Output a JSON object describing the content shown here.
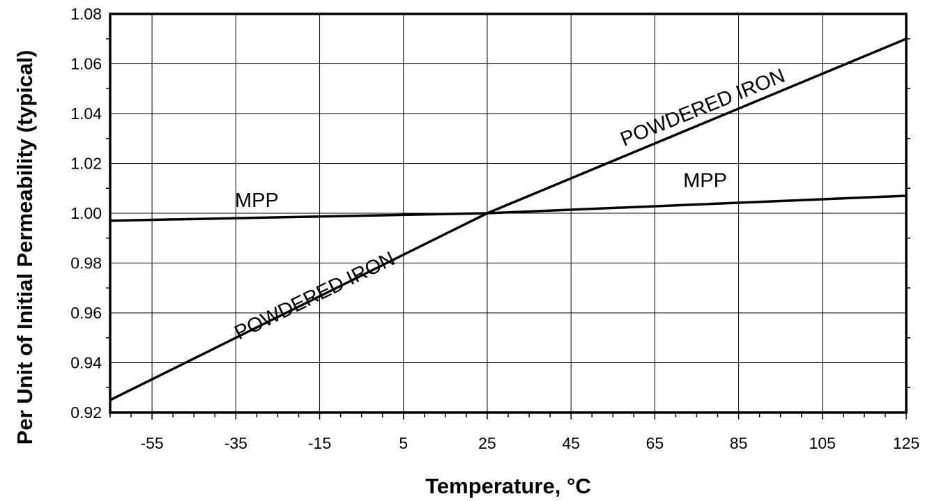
{
  "chart_data": {
    "type": "line",
    "title": "",
    "xlabel": "Temperature, °C",
    "ylabel": "Per Unit of Initial Permeability (typical)",
    "xlim": [
      -65,
      125
    ],
    "ylim": [
      0.92,
      1.08
    ],
    "x_ticks": [
      -55,
      -35,
      -15,
      5,
      25,
      45,
      65,
      85,
      105,
      125
    ],
    "x_tick_labels": [
      "-55",
      "-35",
      "-15",
      "5",
      "25",
      "45",
      "65",
      "85",
      "105",
      "125"
    ],
    "y_ticks": [
      0.92,
      0.94,
      0.96,
      0.98,
      1.0,
      1.02,
      1.04,
      1.06,
      1.08
    ],
    "y_tick_labels": [
      "0.92",
      "0.94",
      "0.96",
      "0.98",
      "1.00",
      "1.02",
      "1.04",
      "1.06",
      "1.08"
    ],
    "grid": true,
    "legend": "none",
    "series": [
      {
        "name": "POWDERED IRON",
        "x": [
          -65,
          25,
          125
        ],
        "y": [
          0.925,
          1.0,
          1.07
        ]
      },
      {
        "name": "MPP",
        "x": [
          -65,
          25,
          125
        ],
        "y": [
          0.997,
          1.0,
          1.007
        ]
      }
    ],
    "annotations": [
      {
        "text": "POWDERED IRON",
        "series": 0,
        "x": -15.5,
        "y": 0.9645,
        "rotate": -26
      },
      {
        "text": "POWDERED IRON",
        "series": 0,
        "x": 77,
        "y": 1.04,
        "rotate": -22
      },
      {
        "text": "MPP",
        "series": 1,
        "x": -30,
        "y": 1.0025,
        "rotate": 0
      },
      {
        "text": "MPP",
        "series": 1,
        "x": 77,
        "y": 1.0105,
        "rotate": 0
      }
    ]
  }
}
